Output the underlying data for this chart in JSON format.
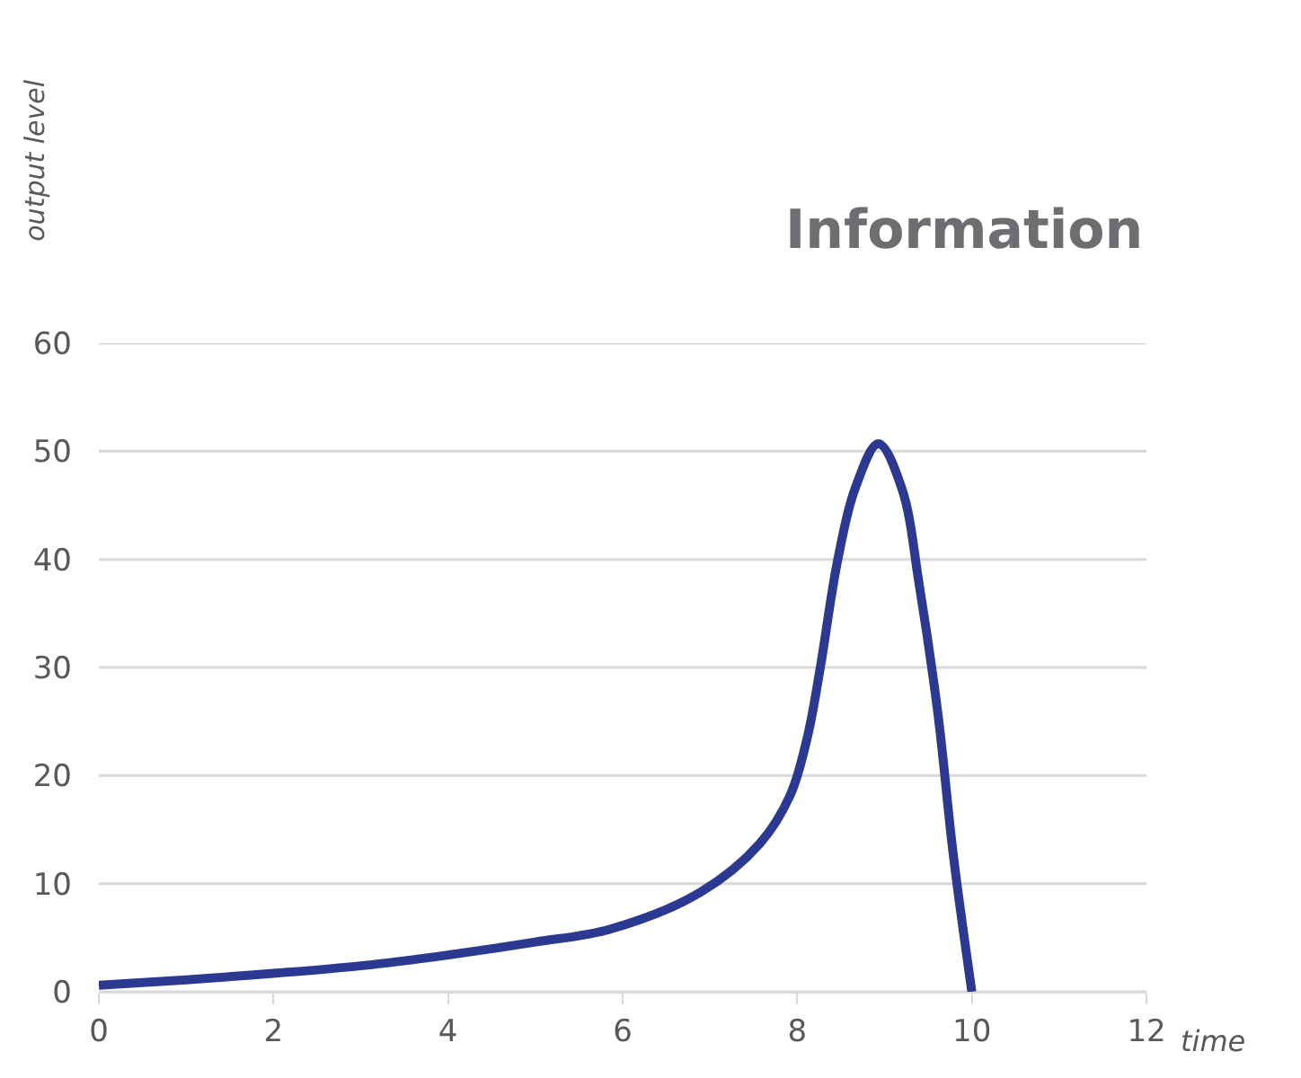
{
  "chart_data": {
    "type": "line",
    "title": "Information",
    "xlabel": "time",
    "ylabel": "output level",
    "x": [
      0,
      1,
      2,
      3,
      4,
      5,
      5.86,
      6.89,
      7.57,
      7.92,
      8.12,
      8.26,
      8.46,
      8.66,
      8.93,
      9.2,
      9.4,
      9.61,
      9.79,
      10
    ],
    "series": [
      {
        "color": "#2b3990",
        "values": [
          0.6,
          1.1,
          1.7,
          2.4,
          3.4,
          4.6,
          5.8,
          9.2,
          13.7,
          18.2,
          23.7,
          29.8,
          39.8,
          46.5,
          50.7,
          46.5,
          37.5,
          25.8,
          12.5,
          0
        ]
      }
    ],
    "xlim": [
      0,
      12
    ],
    "ylim": [
      0,
      60
    ],
    "xticks": [
      0,
      2,
      4,
      6,
      8,
      10,
      12
    ],
    "yticks": [
      0,
      10,
      20,
      30,
      40,
      50,
      60
    ],
    "grid": "y",
    "marker": "none",
    "line_style": "solid"
  }
}
